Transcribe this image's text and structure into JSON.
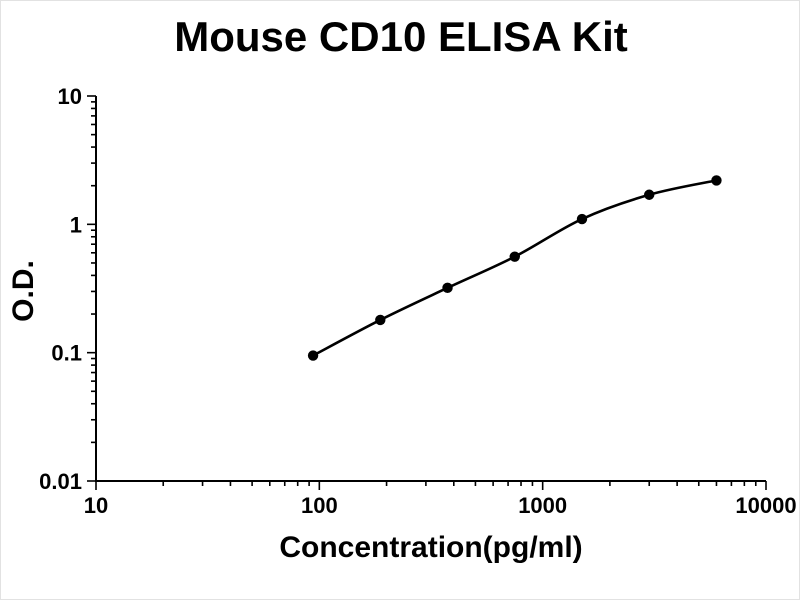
{
  "chart_data": {
    "type": "scatter",
    "title": "Mouse CD10 ELISA Kit",
    "xlabel": "Concentration(pg/ml)",
    "ylabel": "O.D.",
    "xscale": "log",
    "yscale": "log",
    "xlim": [
      10,
      10000
    ],
    "ylim": [
      0.01,
      10
    ],
    "x_ticks": [
      "10",
      "100",
      "1000",
      "10000"
    ],
    "y_ticks": [
      "0.01",
      "0.1",
      "1",
      "10"
    ],
    "grid": "off",
    "legend": "none",
    "points": [
      {
        "x": 93.75,
        "y": 0.095
      },
      {
        "x": 187.5,
        "y": 0.18
      },
      {
        "x": 375,
        "y": 0.32
      },
      {
        "x": 750,
        "y": 0.56
      },
      {
        "x": 1500,
        "y": 1.1
      },
      {
        "x": 3000,
        "y": 1.7
      },
      {
        "x": 6000,
        "y": 2.2
      }
    ],
    "line_color": "#000000",
    "point_color": "#000000",
    "axis_color": "#000000"
  }
}
